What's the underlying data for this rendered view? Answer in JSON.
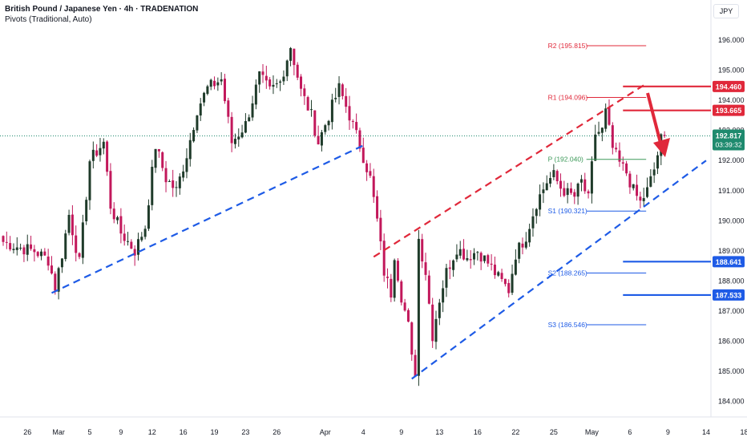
{
  "header": {
    "title": "British Pound / Japanese Yen · 4h · TRADENATION",
    "indicator": "Pivots (Traditional, Auto)",
    "currency": "JPY"
  },
  "colors": {
    "up": "#1f3b2a",
    "down": "#c2185b",
    "support": "#1e5be6",
    "resistance": "#e0283a",
    "pivot": "#3d9a5a",
    "last": "#1e8a6e"
  },
  "chart_data": {
    "type": "candlestick",
    "ylim": [
      183.8,
      196.4
    ],
    "yticks": [
      {
        "v": 196,
        "label": "196.000"
      },
      {
        "v": 195,
        "label": "195.000"
      },
      {
        "v": 194,
        "label": "194.000"
      },
      {
        "v": 193,
        "label": "193.000"
      },
      {
        "v": 192,
        "label": "192.000"
      },
      {
        "v": 191,
        "label": "191.000"
      },
      {
        "v": 190,
        "label": "190.000"
      },
      {
        "v": 189,
        "label": "189.000"
      },
      {
        "v": 188,
        "label": "188.000"
      },
      {
        "v": 187,
        "label": "187.000"
      },
      {
        "v": 186,
        "label": "186.000"
      },
      {
        "v": 185,
        "label": "185.000"
      },
      {
        "v": 184,
        "label": "184.000"
      }
    ],
    "xticks": [
      {
        "bar": 7,
        "label": "26"
      },
      {
        "bar": 16,
        "label": "Mar"
      },
      {
        "bar": 25,
        "label": "5"
      },
      {
        "bar": 34,
        "label": "9"
      },
      {
        "bar": 43,
        "label": "12"
      },
      {
        "bar": 52,
        "label": "16"
      },
      {
        "bar": 61,
        "label": "19"
      },
      {
        "bar": 70,
        "label": "23"
      },
      {
        "bar": 79,
        "label": "26"
      },
      {
        "bar": 93,
        "label": "Apr"
      },
      {
        "bar": 104,
        "label": "4"
      },
      {
        "bar": 115,
        "label": "9"
      },
      {
        "bar": 126,
        "label": "13"
      },
      {
        "bar": 137,
        "label": "16"
      },
      {
        "bar": 148,
        "label": "22"
      },
      {
        "bar": 159,
        "label": "25"
      },
      {
        "bar": 170,
        "label": "May"
      },
      {
        "bar": 181,
        "label": "6"
      },
      {
        "bar": 192,
        "label": "9"
      },
      {
        "bar": 203,
        "label": "14"
      },
      {
        "bar": 214,
        "label": "18"
      }
    ],
    "anchors": [
      [
        0,
        189.3
      ],
      [
        5,
        189.1
      ],
      [
        9,
        189.0
      ],
      [
        13,
        188.7
      ],
      [
        15,
        187.8
      ],
      [
        17,
        188.9
      ],
      [
        19,
        190.2
      ],
      [
        22,
        188.6
      ],
      [
        25,
        192.0
      ],
      [
        29,
        192.6
      ],
      [
        31,
        190.5
      ],
      [
        34,
        189.6
      ],
      [
        38,
        189.0
      ],
      [
        41,
        189.8
      ],
      [
        44,
        192.5
      ],
      [
        47,
        191.4
      ],
      [
        50,
        191.0
      ],
      [
        53,
        192.2
      ],
      [
        56,
        193.7
      ],
      [
        59,
        194.4
      ],
      [
        63,
        194.7
      ],
      [
        66,
        192.6
      ],
      [
        70,
        193.2
      ],
      [
        74,
        194.8
      ],
      [
        77,
        194.3
      ],
      [
        80,
        194.6
      ],
      [
        83,
        195.8
      ],
      [
        86,
        194.3
      ],
      [
        89,
        193.5
      ],
      [
        91,
        192.6
      ],
      [
        94,
        193.5
      ],
      [
        97,
        194.4
      ],
      [
        100,
        193.5
      ],
      [
        103,
        192.5
      ],
      [
        106,
        191.4
      ],
      [
        108,
        190.0
      ],
      [
        110,
        188.3
      ],
      [
        112,
        187.6
      ],
      [
        113,
        188.9
      ],
      [
        115,
        187.5
      ],
      [
        117,
        186.5
      ],
      [
        118,
        185.4
      ],
      [
        119,
        185.0
      ],
      [
        120,
        189.4
      ],
      [
        122,
        188.3
      ],
      [
        124,
        186.2
      ],
      [
        126,
        187.4
      ],
      [
        128,
        188.3
      ],
      [
        131,
        189.1
      ],
      [
        134,
        188.8
      ],
      [
        137,
        189.0
      ],
      [
        140,
        188.6
      ],
      [
        143,
        188.1
      ],
      [
        146,
        187.7
      ],
      [
        148,
        188.9
      ],
      [
        151,
        189.5
      ],
      [
        154,
        190.6
      ],
      [
        157,
        191.3
      ],
      [
        159,
        191.5
      ],
      [
        161,
        191.1
      ],
      [
        163,
        190.9
      ],
      [
        165,
        190.8
      ],
      [
        167,
        191.3
      ],
      [
        169,
        190.7
      ],
      [
        171,
        192.9
      ],
      [
        173,
        193.0
      ],
      [
        174,
        193.6
      ],
      [
        176,
        192.4
      ],
      [
        178,
        191.9
      ],
      [
        180,
        191.6
      ],
      [
        182,
        191.0
      ],
      [
        184,
        190.6
      ],
      [
        186,
        191.0
      ],
      [
        188,
        191.7
      ],
      [
        190,
        192.7
      ],
      [
        191,
        192.8
      ]
    ],
    "pivots": [
      {
        "name": "R2",
        "label": "R2 (195.815)",
        "value": 195.815,
        "color": "#e0283a",
        "x0": 0.785,
        "x1": 0.865
      },
      {
        "name": "R1",
        "label": "R1 (194.096)",
        "value": 194.096,
        "color": "#e0283a",
        "x0": 0.785,
        "x1": 0.865
      },
      {
        "name": "P",
        "label": "P (192.040)",
        "value": 192.04,
        "color": "#3d9a5a",
        "x0": 0.785,
        "x1": 0.865
      },
      {
        "name": "S1",
        "label": "S1 (190.321)",
        "value": 190.321,
        "color": "#1e5be6",
        "x0": 0.785,
        "x1": 0.865
      },
      {
        "name": "S2",
        "label": "S2 (188.265)",
        "value": 188.265,
        "color": "#1e5be6",
        "x0": 0.785,
        "x1": 0.865
      },
      {
        "name": "S3",
        "label": "S3 (186.546)",
        "value": 186.546,
        "color": "#1e5be6",
        "x0": 0.785,
        "x1": 0.865
      }
    ],
    "levels": [
      {
        "value": 194.46,
        "label": "194.460",
        "color": "#e0283a"
      },
      {
        "value": 193.665,
        "label": "193.665",
        "color": "#e0283a"
      },
      {
        "value": 188.641,
        "label": "188.641",
        "color": "#1e5be6"
      },
      {
        "value": 187.533,
        "label": "187.533",
        "color": "#1e5be6"
      }
    ],
    "last_price": {
      "value": 192.817,
      "label": "192.817",
      "countdown": "03:39:32"
    },
    "trendlines": [
      {
        "color": "#1e5be6",
        "from": [
          14,
          187.6
        ],
        "to": [
          104,
          192.5
        ]
      },
      {
        "color": "#e0283a",
        "from": [
          107,
          188.8
        ],
        "to": [
          185,
          194.5
        ]
      },
      {
        "color": "#1e5be6",
        "from": [
          118,
          184.75
        ],
        "to": [
          203,
          192.0
        ]
      }
    ]
  }
}
